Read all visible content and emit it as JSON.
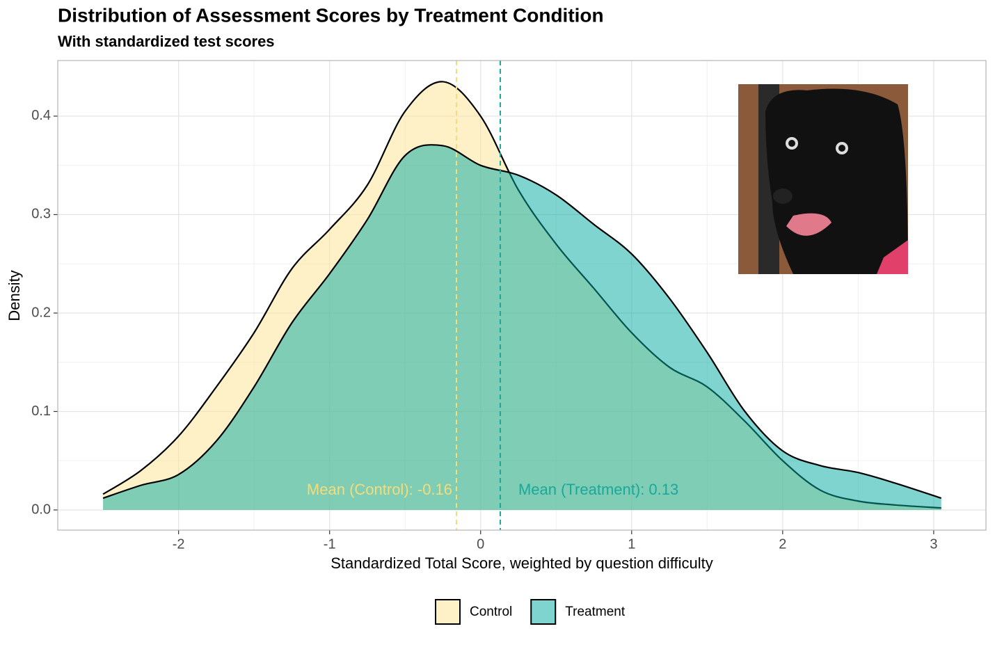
{
  "chart_data": {
    "type": "density",
    "title": "Distribution of Assessment Scores by Treatment Condition",
    "subtitle": "With standardized test scores",
    "x_label": "Standardized Total Score, weighted by question difficulty",
    "y_label": "Density",
    "x": [
      -2.5,
      -2.25,
      -2,
      -1.75,
      -1.5,
      -1.25,
      -1,
      -0.75,
      -0.5,
      -0.25,
      0,
      0.25,
      0.5,
      0.75,
      1,
      1.25,
      1.5,
      1.75,
      2,
      2.25,
      2.5,
      2.75,
      3.05
    ],
    "series": [
      {
        "name": "Control",
        "color": "#fee391",
        "line_color": "#f5dc7a",
        "mean": -0.16,
        "mean_label": "Mean (Control): -0.16",
        "values": [
          0.016,
          0.04,
          0.075,
          0.125,
          0.18,
          0.245,
          0.285,
          0.33,
          0.405,
          0.435,
          0.4,
          0.325,
          0.27,
          0.225,
          0.18,
          0.145,
          0.125,
          0.09,
          0.05,
          0.02,
          0.009,
          0.005,
          0.002
        ]
      },
      {
        "name": "Treatment",
        "color": "#00aa9f",
        "line_color": "#1aa89a",
        "mean": 0.13,
        "mean_label": "Mean (Treatment): 0.13",
        "values": [
          0.012,
          0.025,
          0.036,
          0.07,
          0.125,
          0.19,
          0.24,
          0.295,
          0.36,
          0.37,
          0.35,
          0.34,
          0.32,
          0.29,
          0.26,
          0.215,
          0.16,
          0.1,
          0.06,
          0.045,
          0.038,
          0.027,
          0.012
        ]
      }
    ],
    "xlim": [
      -2.8,
      3.346
    ],
    "ylim": [
      -0.0205,
      0.4565
    ],
    "xticks": [
      -2,
      -1,
      0,
      1,
      2,
      3
    ],
    "yticks": [
      {
        "value": 0,
        "label": "0.0"
      },
      0.1,
      0.2,
      0.3,
      0.4
    ],
    "grid": true,
    "legend": "bottom"
  }
}
